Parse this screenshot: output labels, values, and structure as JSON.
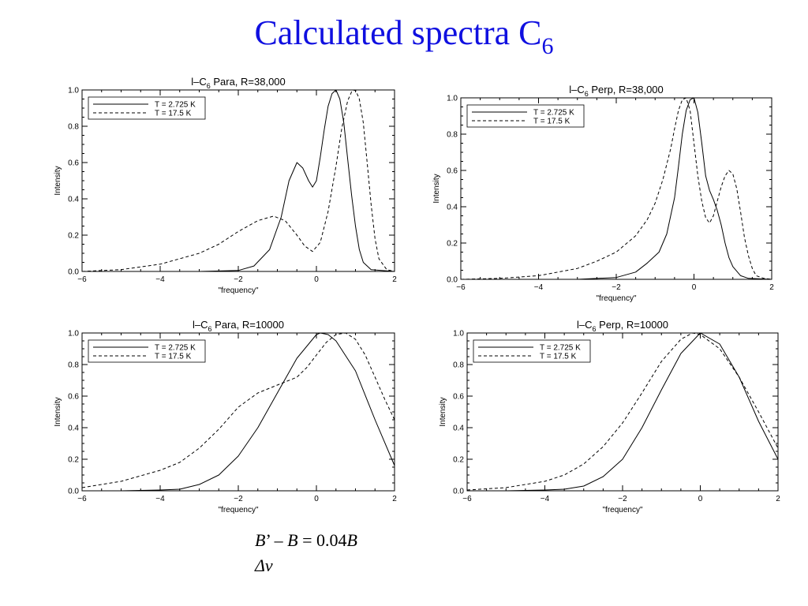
{
  "page": {
    "title_main": "Calculated spectra C",
    "title_sub": "6",
    "note_line1": {
      "b1": "B",
      "mid": "’ – ",
      "b2": "B",
      "eq": " = 0.04",
      "b3": "B"
    },
    "note_line2": "Δν"
  },
  "chart_data": [
    {
      "type": "line",
      "title": {
        "pre": "l–C",
        "sub": "6",
        "post": "  Para, R=38,000"
      },
      "xlabel": "\"frequency\"",
      "ylabel": "Intensity",
      "xlim": [
        -6,
        2
      ],
      "ylim": [
        0,
        1.0
      ],
      "xticks": [
        -6,
        -4,
        -2,
        0,
        2
      ],
      "yticks": [
        0.0,
        0.2,
        0.4,
        0.6,
        0.8,
        1.0
      ],
      "grid": false,
      "legend_position": "top-left",
      "series": [
        {
          "name": "T = 2.725 K",
          "dash": "solid",
          "x": [
            -6,
            -3,
            -2,
            -1.6,
            -1.2,
            -0.9,
            -0.7,
            -0.5,
            -0.35,
            -0.2,
            -0.1,
            0.0,
            0.1,
            0.2,
            0.3,
            0.4,
            0.5,
            0.6,
            0.7,
            0.8,
            0.9,
            1.0,
            1.1,
            1.2,
            1.4,
            2.0
          ],
          "y": [
            0,
            0,
            0.005,
            0.03,
            0.12,
            0.3,
            0.5,
            0.6,
            0.57,
            0.5,
            0.465,
            0.5,
            0.63,
            0.78,
            0.91,
            0.98,
            1.0,
            0.95,
            0.82,
            0.62,
            0.42,
            0.25,
            0.12,
            0.05,
            0.01,
            0
          ]
        },
        {
          "name": "T = 17.5 K",
          "dash": "dashed",
          "x": [
            -6,
            -5,
            -4,
            -3,
            -2.5,
            -2,
            -1.5,
            -1.1,
            -0.8,
            -0.5,
            -0.3,
            -0.1,
            0.1,
            0.3,
            0.5,
            0.65,
            0.8,
            0.9,
            1.0,
            1.1,
            1.2,
            1.3,
            1.4,
            1.5,
            1.6,
            1.8,
            2.0
          ],
          "y": [
            0,
            0.01,
            0.04,
            0.1,
            0.15,
            0.22,
            0.28,
            0.305,
            0.28,
            0.2,
            0.14,
            0.11,
            0.16,
            0.33,
            0.58,
            0.79,
            0.94,
            0.99,
            1.0,
            0.95,
            0.82,
            0.6,
            0.37,
            0.18,
            0.07,
            0.01,
            0
          ]
        }
      ]
    },
    {
      "type": "line",
      "title": {
        "pre": "l–C",
        "sub": "6",
        "post": "  Perp, R=38,000"
      },
      "xlabel": "\"frequency\"",
      "ylabel": "Intensity",
      "xlim": [
        -6,
        2
      ],
      "ylim": [
        0,
        1.0
      ],
      "xticks": [
        -6,
        -4,
        -2,
        0,
        2
      ],
      "yticks": [
        0.0,
        0.2,
        0.4,
        0.6,
        0.8,
        1.0
      ],
      "grid": false,
      "legend_position": "top-left",
      "series": [
        {
          "name": "T = 2.725 K",
          "dash": "solid",
          "x": [
            -6,
            -3,
            -2,
            -1.5,
            -1.2,
            -0.9,
            -0.7,
            -0.5,
            -0.4,
            -0.3,
            -0.2,
            -0.1,
            0.0,
            0.1,
            0.2,
            0.3,
            0.4,
            0.5,
            0.6,
            0.7,
            0.8,
            0.9,
            1.0,
            1.2,
            1.4,
            2.0
          ],
          "y": [
            0,
            0,
            0.01,
            0.04,
            0.09,
            0.15,
            0.25,
            0.45,
            0.62,
            0.8,
            0.93,
            0.99,
            1.0,
            0.92,
            0.75,
            0.57,
            0.49,
            0.44,
            0.38,
            0.3,
            0.2,
            0.12,
            0.07,
            0.02,
            0.005,
            0
          ]
        },
        {
          "name": "T = 17.5 K",
          "dash": "dashed",
          "x": [
            -6,
            -5,
            -4,
            -3,
            -2.5,
            -2,
            -1.5,
            -1.2,
            -1.0,
            -0.8,
            -0.6,
            -0.5,
            -0.4,
            -0.3,
            -0.2,
            -0.1,
            0.0,
            0.1,
            0.2,
            0.3,
            0.4,
            0.5,
            0.6,
            0.7,
            0.8,
            0.9,
            1.0,
            1.1,
            1.2,
            1.3,
            1.4,
            1.5,
            1.6,
            1.8,
            2.0
          ],
          "y": [
            0,
            0.005,
            0.02,
            0.06,
            0.1,
            0.15,
            0.24,
            0.33,
            0.42,
            0.55,
            0.72,
            0.83,
            0.93,
            0.99,
            1.0,
            0.93,
            0.75,
            0.57,
            0.43,
            0.34,
            0.31,
            0.35,
            0.43,
            0.51,
            0.57,
            0.6,
            0.58,
            0.5,
            0.37,
            0.23,
            0.13,
            0.06,
            0.02,
            0.005,
            0
          ]
        }
      ]
    },
    {
      "type": "line",
      "title": {
        "pre": "l–C",
        "sub": "6",
        "post": "  Para, R=10000"
      },
      "xlabel": "\"frequency\"",
      "ylabel": "Intensity",
      "xlim": [
        -6,
        2
      ],
      "ylim": [
        0,
        1.0
      ],
      "xticks": [
        -6,
        -4,
        -2,
        0,
        2
      ],
      "yticks": [
        0.0,
        0.2,
        0.4,
        0.6,
        0.8,
        1.0
      ],
      "grid": false,
      "legend_position": "top-left",
      "series": [
        {
          "name": "T = 2.725 K",
          "dash": "solid",
          "x": [
            -6,
            -5,
            -4,
            -3.5,
            -3,
            -2.5,
            -2,
            -1.5,
            -1,
            -0.5,
            0,
            0.1,
            0.3,
            0.5,
            1,
            1.5,
            2
          ],
          "y": [
            0,
            0,
            0.005,
            0.01,
            0.04,
            0.1,
            0.22,
            0.4,
            0.62,
            0.84,
            0.99,
            1.0,
            0.99,
            0.95,
            0.76,
            0.45,
            0.16
          ]
        },
        {
          "name": "T = 17.5 K",
          "dash": "dashed",
          "x": [
            -6,
            -5,
            -4,
            -3.5,
            -3,
            -2.5,
            -2,
            -1.5,
            -1,
            -0.5,
            -0.25,
            0,
            0.25,
            0.5,
            0.75,
            1,
            1.25,
            1.5,
            1.75,
            2
          ],
          "y": [
            0.02,
            0.06,
            0.13,
            0.18,
            0.27,
            0.39,
            0.53,
            0.62,
            0.67,
            0.72,
            0.78,
            0.86,
            0.94,
            0.99,
            1.0,
            0.96,
            0.86,
            0.72,
            0.58,
            0.45
          ]
        }
      ]
    },
    {
      "type": "line",
      "title": {
        "pre": "l–C",
        "sub": "6",
        "post": "  Perp, R=10000"
      },
      "xlabel": "\"frequency\"",
      "ylabel": "Intensity",
      "xlim": [
        -6,
        2
      ],
      "ylim": [
        0,
        1.0
      ],
      "xticks": [
        -6,
        -4,
        -2,
        0,
        2
      ],
      "yticks": [
        0.0,
        0.2,
        0.4,
        0.6,
        0.8,
        1.0
      ],
      "grid": false,
      "legend_position": "top-left",
      "series": [
        {
          "name": "T = 2.725 K",
          "dash": "solid",
          "x": [
            -6,
            -5,
            -4,
            -3.5,
            -3,
            -2.5,
            -2,
            -1.5,
            -1,
            -0.5,
            0,
            0.5,
            1,
            1.5,
            2
          ],
          "y": [
            0,
            0,
            0.005,
            0.01,
            0.03,
            0.09,
            0.2,
            0.4,
            0.64,
            0.87,
            1.0,
            0.93,
            0.72,
            0.44,
            0.2
          ]
        },
        {
          "name": "T = 17.5 K",
          "dash": "dashed",
          "x": [
            -6,
            -5,
            -4,
            -3.5,
            -3,
            -2.5,
            -2,
            -1.5,
            -1,
            -0.5,
            -0.2,
            0,
            0.5,
            1,
            1.5,
            2
          ],
          "y": [
            0.005,
            0.02,
            0.06,
            0.1,
            0.17,
            0.28,
            0.43,
            0.62,
            0.82,
            0.96,
            1.0,
            0.99,
            0.9,
            0.72,
            0.5,
            0.27
          ]
        }
      ]
    }
  ]
}
